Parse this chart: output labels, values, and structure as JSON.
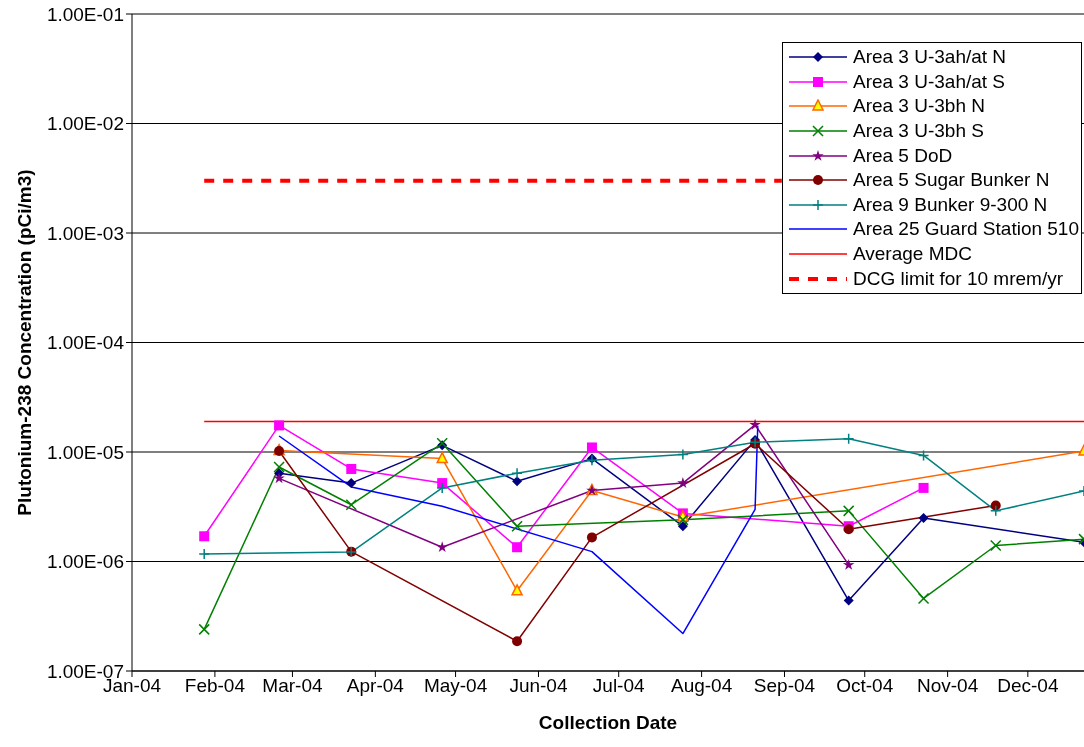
{
  "chart_data": {
    "type": "line",
    "xlabel": "Collection Date",
    "ylabel": "Plutonium-238 Concentration (pCi/m3)",
    "log": "y",
    "grid": "y",
    "legend": "top right",
    "xlim": [
      "2004-01-01",
      "2004-12-22"
    ],
    "xticks": [
      {
        "value": "2004-01-01",
        "label": "Jan-04"
      },
      {
        "value": "2004-02-01",
        "label": "Feb-04"
      },
      {
        "value": "2004-03-01",
        "label": "Mar-04"
      },
      {
        "value": "2004-04-01",
        "label": "Apr-04"
      },
      {
        "value": "2004-05-01",
        "label": "May-04"
      },
      {
        "value": "2004-06-01",
        "label": "Jun-04"
      },
      {
        "value": "2004-07-01",
        "label": "Jul-04"
      },
      {
        "value": "2004-08-01",
        "label": "Aug-04"
      },
      {
        "value": "2004-09-01",
        "label": "Sep-04"
      },
      {
        "value": "2004-10-01",
        "label": "Oct-04"
      },
      {
        "value": "2004-11-01",
        "label": "Nov-04"
      },
      {
        "value": "2004-12-01",
        "label": "Dec-04"
      }
    ],
    "ylim": [
      1e-07,
      0.1
    ],
    "yticks": [
      {
        "value": 1e-07,
        "label": "1.00E-07"
      },
      {
        "value": 1e-06,
        "label": "1.00E-06"
      },
      {
        "value": 1e-05,
        "label": "1.00E-05"
      },
      {
        "value": 0.0001,
        "label": "1.00E-04"
      },
      {
        "value": 0.001,
        "label": "1.00E-03"
      },
      {
        "value": 0.01,
        "label": "1.00E-02"
      },
      {
        "value": 0.1,
        "label": "1.00E-01"
      }
    ],
    "series": [
      {
        "name": "Area 3 U-3ah/at N",
        "color": "#000080",
        "marker": "diamond",
        "x": [
          "2004-02-25",
          "2004-03-23",
          "2004-04-26",
          "2004-05-24",
          "2004-06-21",
          "2004-07-25",
          "2004-08-21",
          "2004-09-25",
          "2004-10-23",
          "2004-12-22"
        ],
        "values": [
          6.4e-06,
          5.2e-06,
          1.15e-05,
          5.4e-06,
          8.7e-06,
          2.1e-06,
          1.29e-05,
          4.4e-07,
          2.5e-06,
          1.5e-06
        ]
      },
      {
        "name": "Area 3 U-3ah/at S",
        "color": "#ff00ff",
        "marker": "square",
        "x": [
          "2004-01-28",
          "2004-02-25",
          "2004-03-23",
          "2004-04-26",
          "2004-05-24",
          "2004-06-21",
          "2004-07-25",
          "2004-09-25",
          "2004-10-23"
        ],
        "values": [
          1.7e-06,
          1.75e-05,
          7e-06,
          5.2e-06,
          1.35e-06,
          1.1e-05,
          2.75e-06,
          2.1e-06,
          4.7e-06
        ]
      },
      {
        "name": "Area 3 U-3bh N",
        "color": "#ff6600",
        "marker": "triangle",
        "x": [
          "2004-02-25",
          "2004-04-26",
          "2004-05-24",
          "2004-06-21",
          "2004-07-25",
          "2004-12-22"
        ],
        "values": [
          1.03e-05,
          8.7e-06,
          5.4e-07,
          4.45e-06,
          2.55e-06,
          1.02e-05
        ]
      },
      {
        "name": "Area 3 U-3bh S",
        "color": "#008000",
        "marker": "cross",
        "x": [
          "2004-01-28",
          "2004-02-25",
          "2004-03-23",
          "2004-04-26",
          "2004-05-24",
          "2004-07-25",
          "2004-09-25",
          "2004-10-23",
          "2004-11-19",
          "2004-12-22"
        ],
        "values": [
          2.4e-07,
          7.3e-06,
          3.3e-06,
          1.2e-05,
          2.1e-06,
          2.4e-06,
          2.9e-06,
          4.6e-07,
          1.4e-06,
          1.6e-06
        ]
      },
      {
        "name": "Area 5 DoD",
        "color": "#800080",
        "marker": "star",
        "x": [
          "2004-02-25",
          "2004-04-26",
          "2004-06-21",
          "2004-07-25",
          "2004-08-21",
          "2004-09-25"
        ],
        "values": [
          5.75e-06,
          1.35e-06,
          4.45e-06,
          5.2e-06,
          1.77e-05,
          9.3e-07
        ]
      },
      {
        "name": "Area 5 Sugar Bunker N",
        "color": "#800000",
        "marker": "circle",
        "x": [
          "2004-02-25",
          "2004-03-23",
          "2004-05-24",
          "2004-06-21",
          "2004-08-21",
          "2004-09-25",
          "2004-11-19"
        ],
        "values": [
          1.02e-05,
          1.23e-06,
          1.87e-07,
          1.66e-06,
          1.19e-05,
          1.97e-06,
          3.25e-06
        ]
      },
      {
        "name": "Area 9 Bunker 9-300 N",
        "color": "#008080",
        "marker": "plus",
        "x": [
          "2004-01-28",
          "2004-03-23",
          "2004-04-26",
          "2004-05-24",
          "2004-06-21",
          "2004-07-25",
          "2004-08-21",
          "2004-09-25",
          "2004-10-23",
          "2004-11-19",
          "2004-12-22"
        ],
        "values": [
          1.17e-06,
          1.22e-06,
          4.7e-06,
          6.4e-06,
          8.4e-06,
          9.5e-06,
          1.23e-05,
          1.32e-05,
          9.3e-06,
          2.9e-06,
          4.4e-06
        ]
      },
      {
        "name": "Area 25 Guard Station 510",
        "color": "#0000ff",
        "marker": "none",
        "x": [
          "2004-02-25",
          "2004-03-23",
          "2004-04-26",
          "2004-06-21",
          "2004-07-25",
          "2004-08-21",
          "2004-08-22"
        ],
        "values": [
          1.4e-05,
          4.8e-06,
          3.2e-06,
          1.23e-06,
          2.2e-07,
          3e-06,
          1.74e-05
        ]
      },
      {
        "name": "Average MDC",
        "color": "#ff0000",
        "marker": "none",
        "x": [
          "2004-01-28",
          "2004-12-22"
        ],
        "values": [
          1.9e-05,
          1.9e-05
        ]
      },
      {
        "name": "DCG limit for 10 mrem/yr",
        "color": "#ff0000",
        "marker": "none",
        "line_style": "dashed",
        "x": [
          "2004-01-28",
          "2004-08-31"
        ],
        "values": [
          0.003,
          0.003
        ]
      }
    ]
  }
}
